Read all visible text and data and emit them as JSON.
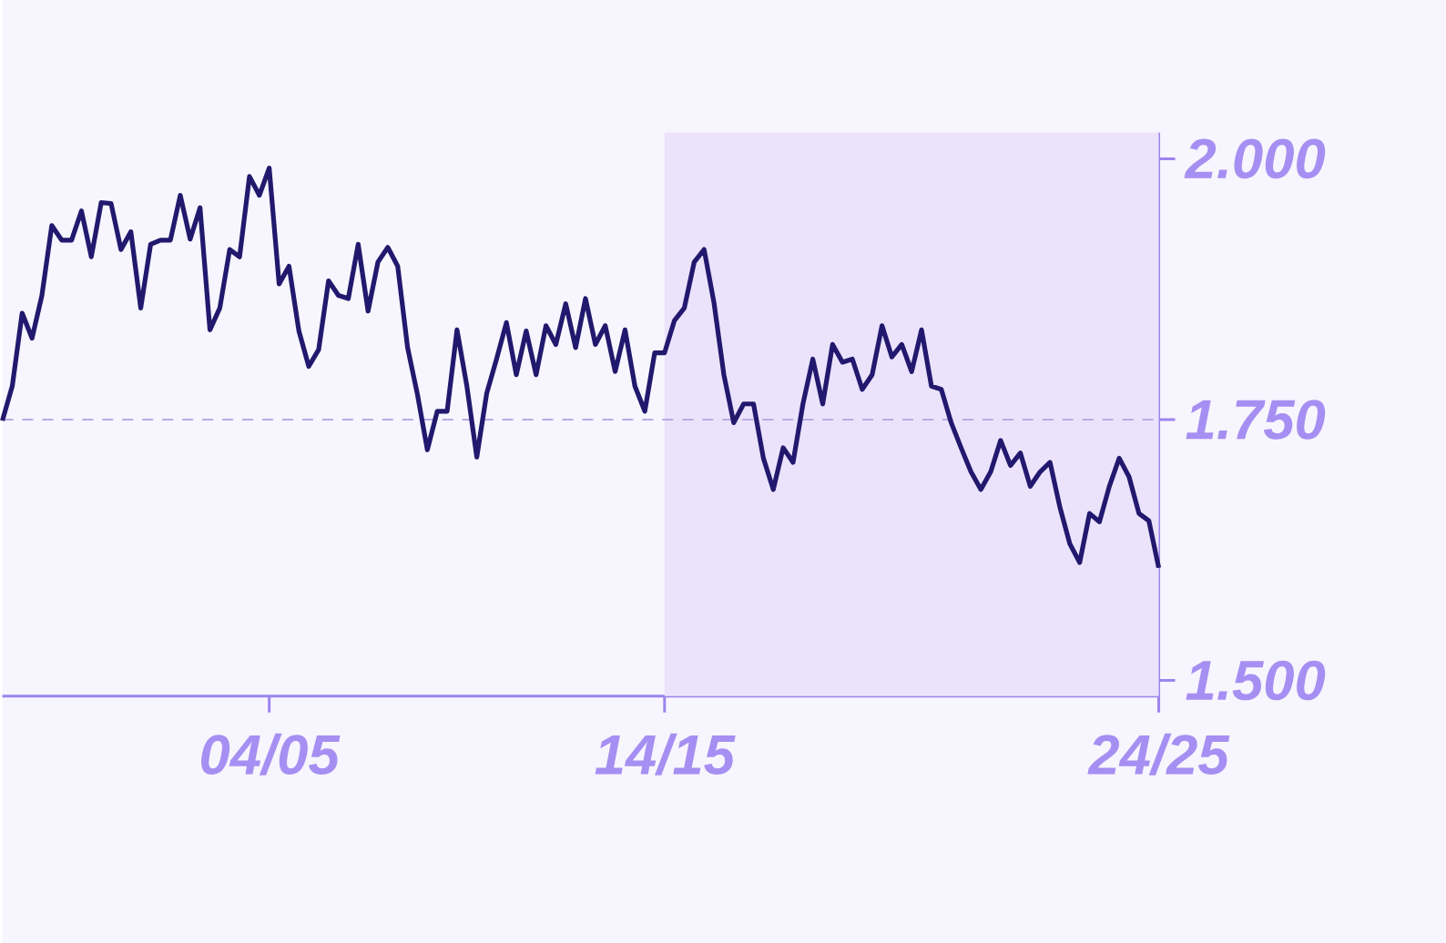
{
  "chart_data": {
    "type": "line",
    "categories": [
      null,
      null,
      null,
      null,
      null,
      null,
      null,
      null,
      null,
      null,
      null,
      null,
      null,
      null,
      null,
      null,
      null,
      null,
      null,
      null,
      null,
      null,
      null,
      null,
      null,
      null,
      null,
      "04/05",
      null,
      null,
      null,
      null,
      null,
      null,
      null,
      null,
      null,
      null,
      null,
      null,
      null,
      null,
      null,
      null,
      null,
      null,
      null,
      null,
      null,
      null,
      null,
      null,
      null,
      null,
      null,
      null,
      null,
      null,
      null,
      null,
      null,
      null,
      null,
      null,
      null,
      null,
      null,
      "14/15",
      null,
      null,
      null,
      null,
      null,
      null,
      null,
      null,
      null,
      null,
      null,
      null,
      null,
      null,
      null,
      null,
      null,
      null,
      null,
      null,
      null,
      null,
      null,
      null,
      null,
      null,
      null,
      null,
      null,
      null,
      null,
      null,
      null,
      null,
      null,
      null,
      null,
      null,
      null,
      null,
      null,
      null,
      null,
      null,
      null,
      null,
      null,
      null,
      null,
      "24/25"
    ],
    "values": [
      1.749,
      1.782,
      1.852,
      1.828,
      1.869,
      1.936,
      1.922,
      1.922,
      1.95,
      1.906,
      1.958,
      1.957,
      1.913,
      1.93,
      1.857,
      1.918,
      1.922,
      1.922,
      1.965,
      1.923,
      1.953,
      1.836,
      1.857,
      1.913,
      1.906,
      1.983,
      1.965,
      1.991,
      1.88,
      1.897,
      1.835,
      1.801,
      1.817,
      1.883,
      1.869,
      1.866,
      1.918,
      1.854,
      1.901,
      1.915,
      1.897,
      1.819,
      1.774,
      1.721,
      1.758,
      1.758,
      1.836,
      1.782,
      1.714,
      1.775,
      1.808,
      1.843,
      1.793,
      1.835,
      1.793,
      1.84,
      1.822,
      1.861,
      1.819,
      1.866,
      1.822,
      1.84,
      1.796,
      1.836,
      1.782,
      1.758,
      1.814,
      1.814,
      1.845,
      1.857,
      1.901,
      1.913,
      1.862,
      1.793,
      1.747,
      1.765,
      1.765,
      1.713,
      1.683,
      1.723,
      1.709,
      1.765,
      1.808,
      1.765,
      1.822,
      1.805,
      1.808,
      1.779,
      1.793,
      1.84,
      1.81,
      1.822,
      1.796,
      1.836,
      1.782,
      1.779,
      1.747,
      1.723,
      1.7,
      1.683,
      1.7,
      1.73,
      1.706,
      1.718,
      1.686,
      1.7,
      1.709,
      1.666,
      1.631,
      1.613,
      1.66,
      1.652,
      1.686,
      1.713,
      1.695,
      1.66,
      1.653,
      1.608
    ],
    "color": "#22196e",
    "ylim": [
      1.485,
      2.025
    ],
    "yticks": [
      {
        "value": 1.5,
        "label": "1.500"
      },
      {
        "value": 1.75,
        "label": "1.750"
      },
      {
        "value": 2,
        "label": "2.000"
      }
    ],
    "ref_lines": [
      {
        "axis": "y",
        "value": 1.75,
        "color": "#b8ace6",
        "line_style": "dashed"
      }
    ],
    "bands": [
      {
        "axis": "x",
        "from": "14/15",
        "to": "24/25",
        "color": "#ebe3fb"
      }
    ]
  }
}
